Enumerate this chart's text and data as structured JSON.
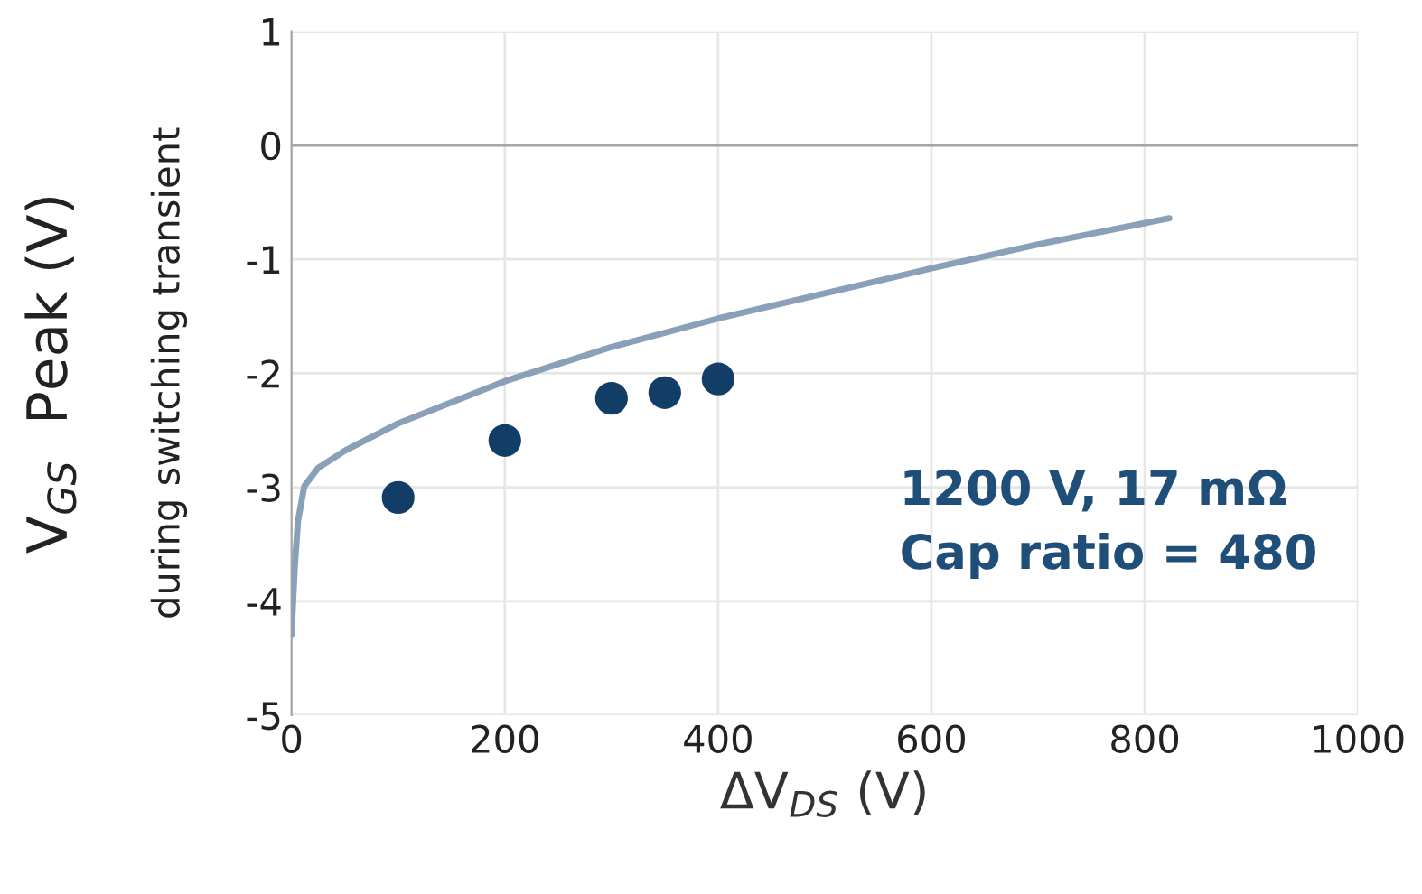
{
  "chart_data": {
    "type": "scatter",
    "xlabel": "ΔV$_{DS}$ (V)",
    "ylabel": "V$_{GS}$  Peak (V)",
    "annotations": [
      "during switching transient",
      "1200 V, 17 mΩ\nCap ratio = 480"
    ],
    "series": [
      {
        "type": "line",
        "line_style": "solid",
        "color": "#8aa0b8",
        "x": [
          0,
          3,
          6,
          12,
          25,
          50,
          100,
          200,
          300,
          400,
          500,
          600,
          700,
          823
        ],
        "values": [
          -4.29,
          -3.7,
          -3.3,
          -2.99,
          -2.83,
          -2.68,
          -2.44,
          -2.07,
          -1.77,
          -1.52,
          -1.3,
          -1.08,
          -0.87,
          -0.64
        ]
      },
      {
        "marker": "circle",
        "color": "#123d66",
        "x": [
          100,
          200,
          300,
          350,
          400
        ],
        "values": [
          -3.09,
          -2.59,
          -2.22,
          -2.17,
          -2.05
        ]
      }
    ],
    "xlim": [
      0,
      1000
    ],
    "xticks": [
      0,
      200,
      400,
      600,
      800,
      1000
    ],
    "ylim": [
      -5,
      1
    ],
    "yticks": [
      -5,
      -4,
      -3,
      -2,
      -1,
      0,
      1
    ],
    "ref_lines": [
      {
        "axis": "y",
        "value": 0,
        "color": "#a6a6a6"
      }
    ],
    "grid": true
  }
}
